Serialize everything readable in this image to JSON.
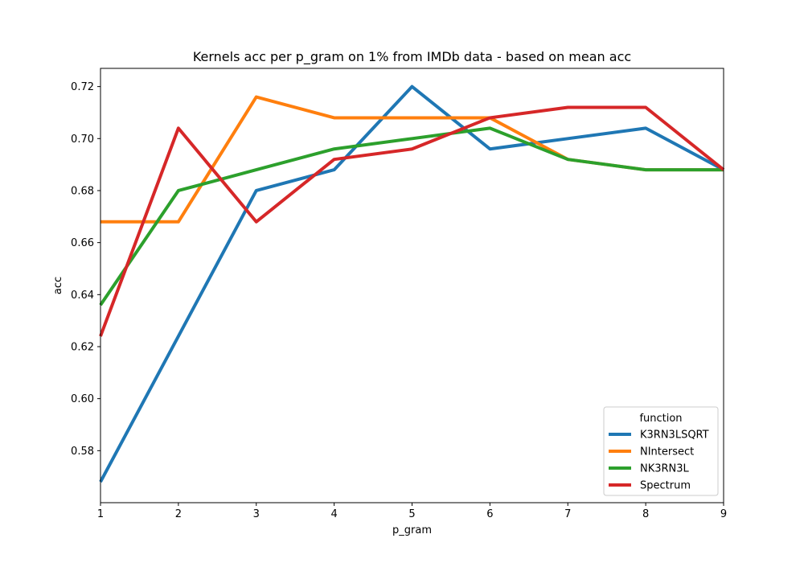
{
  "chart_data": {
    "type": "line",
    "title": "Kernels acc per p_gram on 1% from IMDb data - based on mean acc",
    "xlabel": "p_gram",
    "ylabel": "acc",
    "x": [
      1,
      2,
      3,
      4,
      5,
      6,
      7,
      8,
      9
    ],
    "xlim": [
      1,
      9
    ],
    "ylim": [
      0.56,
      0.727
    ],
    "yticks": [
      0.58,
      0.6,
      0.62,
      0.64,
      0.66,
      0.68,
      0.7,
      0.72
    ],
    "grid": false,
    "legend_title": "function",
    "legend_position": "lower-right",
    "series": [
      {
        "name": "K3RN3LSQRT",
        "color": "#1f77b4",
        "values": [
          0.568,
          0.624,
          0.68,
          0.688,
          0.72,
          0.696,
          0.7,
          0.704,
          0.688
        ]
      },
      {
        "name": "NIntersect",
        "color": "#ff7f0e",
        "values": [
          0.668,
          0.668,
          0.716,
          0.708,
          0.708,
          0.708,
          0.692,
          0.688,
          0.688
        ]
      },
      {
        "name": "NK3RN3L",
        "color": "#2ca02c",
        "values": [
          0.636,
          0.68,
          0.688,
          0.696,
          0.7,
          0.704,
          0.692,
          0.688,
          0.688
        ]
      },
      {
        "name": "Spectrum",
        "color": "#d62728",
        "values": [
          0.624,
          0.704,
          0.668,
          0.692,
          0.696,
          0.708,
          0.712,
          0.712,
          0.688
        ]
      }
    ]
  }
}
